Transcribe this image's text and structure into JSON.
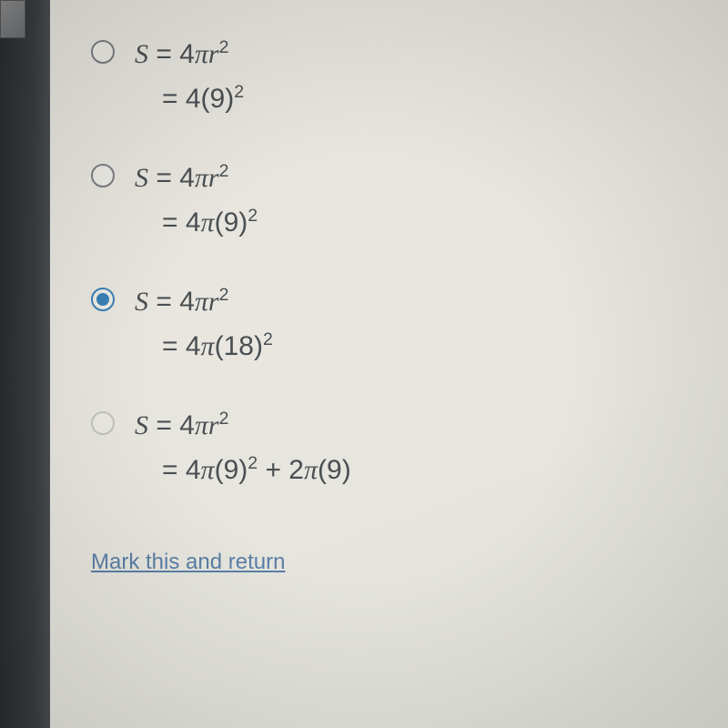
{
  "options": [
    {
      "selected": false,
      "faded": false,
      "line1_html": "<span class='italic-s'>S</span> = 4<span class='pi'>&pi;</span><span class='italic-r'>r</span><sup>2</sup>",
      "line2_html": "= 4(9)<sup>2</sup>"
    },
    {
      "selected": false,
      "faded": false,
      "line1_html": "<span class='italic-s'>S</span> = 4<span class='pi'>&pi;</span><span class='italic-r'>r</span><sup>2</sup>",
      "line2_html": "= 4<span class='pi'>&pi;</span>(9)<sup>2</sup>"
    },
    {
      "selected": true,
      "faded": false,
      "line1_html": "<span class='italic-s'>S</span> = 4<span class='pi'>&pi;</span><span class='italic-r'>r</span><sup>2</sup>",
      "line2_html": "= 4<span class='pi'>&pi;</span>(18)<sup>2</sup>"
    },
    {
      "selected": false,
      "faded": true,
      "line1_html": "<span class='italic-s'>S</span> = 4<span class='pi'>&pi;</span><span class='italic-r'>r</span><sup>2</sup>",
      "line2_html": "= 4<span class='pi'>&pi;</span>(9)<sup>2</sup> + 2<span class='pi'>&pi;</span>(9)"
    }
  ],
  "link_label": "Mark this and return",
  "colors": {
    "text": "#4a4f52",
    "radio_border": "#7a7d7f",
    "radio_selected": "#3a7fb5",
    "link": "#5a7fa5",
    "background": "#e5e3dc"
  },
  "typography": {
    "formula_fontsize": 30,
    "link_fontsize": 24
  }
}
